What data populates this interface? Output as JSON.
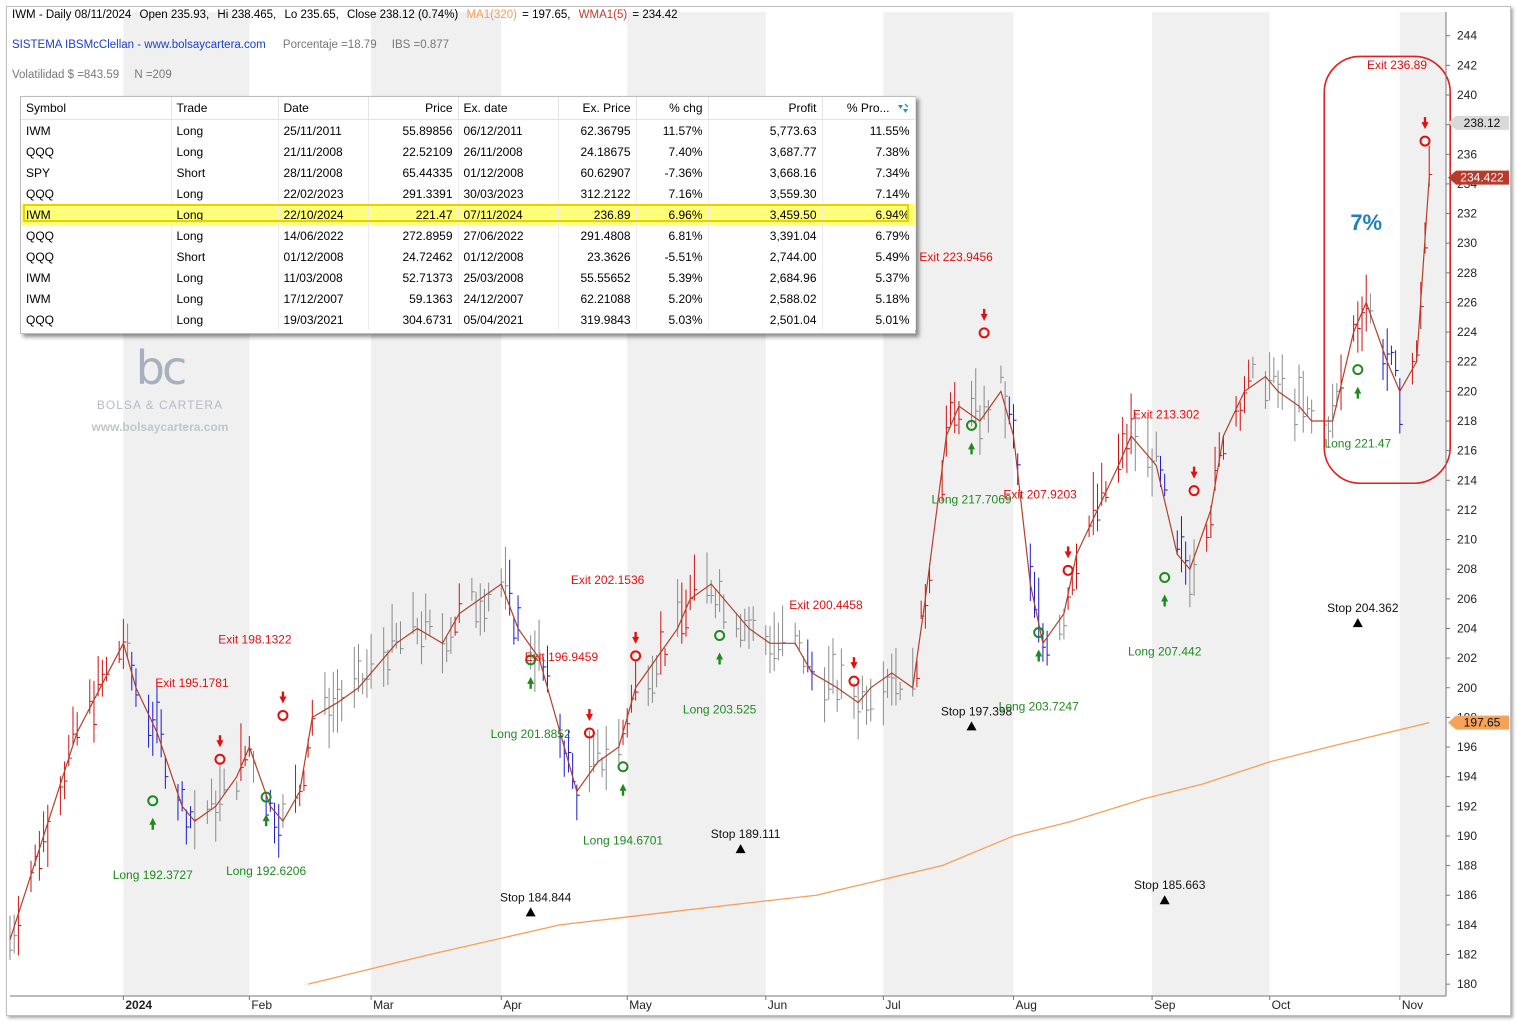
{
  "header": {
    "line1": {
      "symbol_period": "IWM - Daily 08/11/2024",
      "open": "Open 235.93,",
      "high": "Hi 238.465,",
      "low": "Lo 235.65,",
      "close": "Close 238.12 (0.74%)",
      "ma_label": "MA1(320)",
      "ma_value": "= 197.65,",
      "wma_label": "WMA1(5)",
      "wma_value": "= 234.42"
    },
    "line2": {
      "system": "SISTEMA IBSMcClellan  -  www.bolsaycartera.com",
      "pct": "Porcentaje =18.79",
      "ibs": "IBS =0.877"
    },
    "line3": {
      "vol": "Volatilidad $ =843.59",
      "n": "N =209"
    }
  },
  "watermark": {
    "logo": "bc",
    "name": "BOLSA & CARTERA",
    "url": "www.bolsaycartera.com"
  },
  "table": {
    "columns": [
      "Symbol",
      "Trade",
      "Date",
      "Price",
      "Ex. date",
      "Ex. Price",
      "% chg",
      "Profit",
      "% Pro..."
    ],
    "rows": [
      [
        "IWM",
        "Long",
        "25/11/2011",
        "55.89856",
        "06/12/2011",
        "62.36795",
        "11.57%",
        "5,773.63",
        "11.55%"
      ],
      [
        "QQQ",
        "Long",
        "21/11/2008",
        "22.52109",
        "26/11/2008",
        "24.18675",
        "7.40%",
        "3,687.77",
        "7.38%"
      ],
      [
        "SPY",
        "Short",
        "28/11/2008",
        "65.44335",
        "01/12/2008",
        "60.62907",
        "-7.36%",
        "3,668.16",
        "7.34%"
      ],
      [
        "QQQ",
        "Long",
        "22/02/2023",
        "291.3391",
        "30/03/2023",
        "312.2122",
        "7.16%",
        "3,559.30",
        "7.14%"
      ],
      [
        "IWM",
        "Long",
        "22/10/2024",
        "221.47",
        "07/11/2024",
        "236.89",
        "6.96%",
        "3,459.50",
        "6.94%"
      ],
      [
        "QQQ",
        "Long",
        "14/06/2022",
        "272.8959",
        "27/06/2022",
        "291.4808",
        "6.81%",
        "3,391.04",
        "6.79%"
      ],
      [
        "QQQ",
        "Short",
        "01/12/2008",
        "24.72462",
        "01/12/2008",
        "23.3626",
        "-5.51%",
        "2,744.00",
        "5.49%"
      ],
      [
        "IWM",
        "Long",
        "11/03/2008",
        "52.71373",
        "25/03/2008",
        "55.55652",
        "5.39%",
        "2,684.96",
        "5.37%"
      ],
      [
        "IWM",
        "Long",
        "17/12/2007",
        "59.1363",
        "24/12/2007",
        "62.21088",
        "5.20%",
        "2,588.02",
        "5.18%"
      ],
      [
        "QQQ",
        "Long",
        "19/03/2021",
        "304.6731",
        "05/04/2021",
        "319.9843",
        "5.03%",
        "2,501.04",
        "5.01%"
      ]
    ],
    "highlight_row": 4
  },
  "chart_data": {
    "type": "line",
    "ylim": [
      179.2,
      245.6
    ],
    "yticks": [
      180,
      182,
      184,
      186,
      188,
      190,
      192,
      194,
      196,
      198,
      200,
      202,
      204,
      206,
      208,
      210,
      212,
      214,
      216,
      218,
      220,
      222,
      224,
      226,
      228,
      230,
      232,
      234,
      236,
      238,
      240,
      242,
      244
    ],
    "ytick_labels": [
      "180",
      "182",
      "184",
      "186",
      "188",
      "190",
      "192",
      "194",
      "196",
      "198",
      "200",
      "202",
      "204",
      "206",
      "208",
      "210",
      "212",
      "214",
      "216",
      "218",
      "220",
      "222",
      "224",
      "226",
      "228",
      "230",
      "232",
      "234",
      "236",
      "238",
      "240",
      "242",
      "244"
    ],
    "x_labels": [
      {
        "label": "2024",
        "date": "2024-01-02",
        "bold": true
      },
      {
        "label": "Feb",
        "date": "2024-02-01"
      },
      {
        "label": "Mar",
        "date": "2024-03-01"
      },
      {
        "label": "Apr",
        "date": "2024-04-01"
      },
      {
        "label": "May",
        "date": "2024-05-01"
      },
      {
        "label": "Jun",
        "date": "2024-06-03"
      },
      {
        "label": "Jul",
        "date": "2024-07-01"
      },
      {
        "label": "Aug",
        "date": "2024-08-01"
      },
      {
        "label": "Sep",
        "date": "2024-09-03"
      },
      {
        "label": "Oct",
        "date": "2024-10-01"
      },
      {
        "label": "Nov",
        "date": "2024-11-01"
      }
    ],
    "x_range": [
      "2023-12-06",
      "2024-11-12"
    ],
    "price_current": "238.12",
    "wma_current": "234.422",
    "ma_current": "197.65",
    "colors": {
      "up": "#1a1acd",
      "down": "#cc1111",
      "neutral": "#8a8a8a",
      "wma": "#b2402a",
      "ma": "#f5a05a",
      "stripe": "#f0f0f0",
      "entry": "#1f8a1f",
      "exit": "#e01010",
      "focus": "#e02020",
      "pct": "#1f7fbf"
    },
    "series": [
      {
        "name": "WMA1(5)",
        "points": [
          [
            "2023-12-06",
            183
          ],
          [
            "2023-12-14",
            190
          ],
          [
            "2023-12-22",
            197
          ],
          [
            "2024-01-02",
            203
          ],
          [
            "2024-01-05",
            200
          ],
          [
            "2024-01-10",
            197
          ],
          [
            "2024-01-16",
            192
          ],
          [
            "2024-01-19",
            191
          ],
          [
            "2024-01-24",
            192
          ],
          [
            "2024-01-29",
            194
          ],
          [
            "2024-02-01",
            196
          ],
          [
            "2024-02-06",
            192
          ],
          [
            "2024-02-09",
            191
          ],
          [
            "2024-02-13",
            193
          ],
          [
            "2024-02-16",
            198
          ],
          [
            "2024-02-22",
            199
          ],
          [
            "2024-02-27",
            200
          ],
          [
            "2024-03-01",
            201
          ],
          [
            "2024-03-07",
            203
          ],
          [
            "2024-03-12",
            204
          ],
          [
            "2024-03-18",
            203
          ],
          [
            "2024-03-22",
            205
          ],
          [
            "2024-03-27",
            206
          ],
          [
            "2024-04-01",
            207
          ],
          [
            "2024-04-05",
            204
          ],
          [
            "2024-04-10",
            202
          ],
          [
            "2024-04-16",
            196
          ],
          [
            "2024-04-19",
            193
          ],
          [
            "2024-04-24",
            195
          ],
          [
            "2024-04-29",
            196
          ],
          [
            "2024-05-03",
            200
          ],
          [
            "2024-05-08",
            202
          ],
          [
            "2024-05-13",
            204
          ],
          [
            "2024-05-16",
            206
          ],
          [
            "2024-05-21",
            207
          ],
          [
            "2024-05-24",
            206
          ],
          [
            "2024-05-30",
            204
          ],
          [
            "2024-06-04",
            203
          ],
          [
            "2024-06-10",
            203
          ],
          [
            "2024-06-14",
            201
          ],
          [
            "2024-06-20",
            200
          ],
          [
            "2024-06-25",
            199
          ],
          [
            "2024-06-28",
            200
          ],
          [
            "2024-07-03",
            201
          ],
          [
            "2024-07-08",
            200
          ],
          [
            "2024-07-11",
            206
          ],
          [
            "2024-07-16",
            217
          ],
          [
            "2024-07-19",
            219
          ],
          [
            "2024-07-24",
            218
          ],
          [
            "2024-07-29",
            220
          ],
          [
            "2024-08-01",
            217
          ],
          [
            "2024-08-05",
            207
          ],
          [
            "2024-08-08",
            203
          ],
          [
            "2024-08-13",
            205
          ],
          [
            "2024-08-16",
            209
          ],
          [
            "2024-08-21",
            212
          ],
          [
            "2024-08-26",
            215
          ],
          [
            "2024-08-29",
            217
          ],
          [
            "2024-09-04",
            215
          ],
          [
            "2024-09-09",
            209
          ],
          [
            "2024-09-12",
            208
          ],
          [
            "2024-09-17",
            212
          ],
          [
            "2024-09-20",
            217
          ],
          [
            "2024-09-25",
            220
          ],
          [
            "2024-09-30",
            221
          ],
          [
            "2024-10-03",
            220
          ],
          [
            "2024-10-08",
            219
          ],
          [
            "2024-10-11",
            218
          ],
          [
            "2024-10-16",
            218
          ],
          [
            "2024-10-21",
            224
          ],
          [
            "2024-10-24",
            226
          ],
          [
            "2024-10-29",
            222
          ],
          [
            "2024-11-01",
            220
          ],
          [
            "2024-11-05",
            222
          ],
          [
            "2024-11-08",
            234.42
          ]
        ]
      },
      {
        "name": "MA1(320)",
        "points": [
          [
            "2024-02-15",
            180
          ],
          [
            "2024-03-15",
            182
          ],
          [
            "2024-04-15",
            184
          ],
          [
            "2024-05-15",
            185
          ],
          [
            "2024-06-15",
            186
          ],
          [
            "2024-07-15",
            188
          ],
          [
            "2024-08-01",
            190
          ],
          [
            "2024-08-15",
            191
          ],
          [
            "2024-09-01",
            192.5
          ],
          [
            "2024-09-15",
            193.5
          ],
          [
            "2024-10-01",
            195
          ],
          [
            "2024-10-15",
            196
          ],
          [
            "2024-11-08",
            197.65
          ]
        ]
      }
    ],
    "trades": [
      {
        "entry_date": "2024-01-09",
        "entry_price": 192.3727,
        "entry_label": "Long 192.3727",
        "exit_date": "2024-01-25",
        "exit_price": 195.1781,
        "exit_label": "Exit 195.1781",
        "stop": null
      },
      {
        "entry_date": "2024-02-05",
        "entry_price": 192.6206,
        "entry_label": "Long 192.6206",
        "exit_date": "2024-02-09",
        "exit_price": 198.1322,
        "exit_label": "Exit 198.1322",
        "stop": null
      },
      {
        "entry_date": "2024-04-08",
        "entry_price": 201.8852,
        "entry_label": "Long 201.8852",
        "exit_date": "2024-04-22",
        "exit_price": 196.9459,
        "exit_label": "Exit 196.9459",
        "stop": {
          "date": "2024-04-08",
          "price": 184.844,
          "label": "Stop  184.844"
        }
      },
      {
        "entry_date": "2024-04-30",
        "entry_price": 194.6701,
        "entry_label": "Long 194.6701",
        "exit_date": "2024-05-03",
        "exit_price": 202.1536,
        "exit_label": "Exit 202.1536",
        "stop": {
          "date": "2024-05-28",
          "price": 189.111,
          "label": "Stop  189.111"
        }
      },
      {
        "entry_date": "2024-05-23",
        "entry_price": 203.525,
        "entry_label": "Long 203.525",
        "exit_date": "2024-06-24",
        "exit_price": 200.4458,
        "exit_label": "Exit 200.4458",
        "stop": null
      },
      {
        "entry_date": "2024-07-22",
        "entry_price": 217.7069,
        "entry_label": "Long 217.7069",
        "exit_date": "2024-07-25",
        "exit_price": 223.9456,
        "exit_label": "Exit 223.9456",
        "stop": {
          "date": "2024-07-22",
          "price": 197.398,
          "label": "Stop  197.398"
        }
      },
      {
        "entry_date": "2024-08-07",
        "entry_price": 203.7247,
        "entry_label": "Long 203.7247",
        "exit_date": "2024-08-14",
        "exit_price": 207.9203,
        "exit_label": "Exit 207.9203",
        "stop": null
      },
      {
        "entry_date": "2024-09-06",
        "entry_price": 207.442,
        "entry_label": "Long 207.442",
        "exit_date": "2024-09-13",
        "exit_price": 213.302,
        "exit_label": "Exit 213.302",
        "stop": {
          "date": "2024-09-06",
          "price": 185.663,
          "label": "Stop  185.663"
        }
      },
      {
        "entry_date": "2024-10-22",
        "entry_price": 221.47,
        "entry_label": "Long 221.47",
        "exit_date": "2024-11-07",
        "exit_price": 236.89,
        "exit_label": "Exit 236.89",
        "stop": {
          "date": "2024-10-22",
          "price": 204.362,
          "label": "Stop  204.362"
        }
      }
    ],
    "annotation": {
      "label": "7%",
      "date": "2024-10-24",
      "price": 230.9
    }
  }
}
